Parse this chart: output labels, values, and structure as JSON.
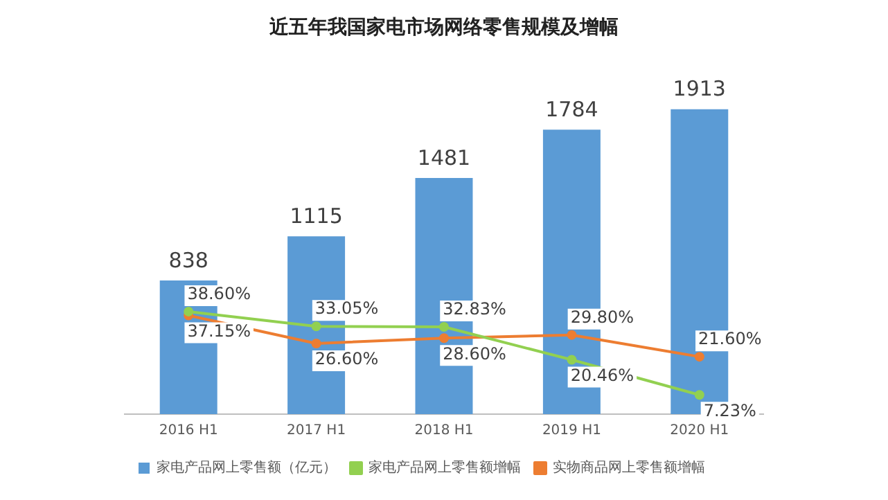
{
  "chart_data": {
    "type": "bar",
    "title": "近五年我国家电市场网络零售规模及增幅",
    "categories": [
      "2016 H1",
      "2017 H1",
      "2018 H1",
      "2019 H1",
      "2020 H1"
    ],
    "series": [
      {
        "name": "家电产品网上零售额（亿元）",
        "color": "#5b9bd5",
        "values": [
          838,
          1115,
          1481,
          1784,
          1913
        ]
      },
      {
        "name": "家电产品网上零售额增幅",
        "type": "line",
        "axis": "y2",
        "color": "#92d050",
        "values": [
          38.6,
          33.05,
          32.83,
          20.46,
          7.23
        ],
        "value_labels": [
          "38.60%",
          "33.05%",
          "32.83%",
          "20.46%",
          "7.23%"
        ]
      },
      {
        "name": "实物商品网上零售额增幅",
        "type": "line",
        "axis": "y2",
        "color": "#ed7d31",
        "values": [
          37.15,
          26.6,
          28.6,
          29.8,
          21.6
        ],
        "value_labels": [
          "37.15%",
          "26.60%",
          "28.60%",
          "29.80%",
          "21.60%"
        ]
      }
    ],
    "data_labels": true,
    "legend": "bottom",
    "grid": false,
    "marker": "circle",
    "tick_labels": "x"
  }
}
